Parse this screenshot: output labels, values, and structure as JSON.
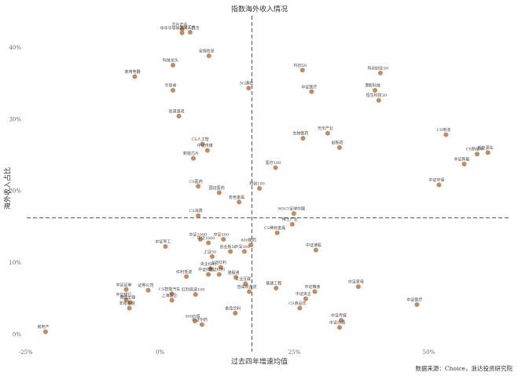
{
  "chart_data": {
    "type": "scatter",
    "title": "指数海外收入情况",
    "x_label": "过去四年增速均值",
    "y_label": "海外收入占比",
    "source": "数据来源：Choice，浙达投资研究院",
    "color": "#c98a5b",
    "xlim": [
      -27,
      65
    ],
    "ylim": [
      -1.5,
      44.5
    ],
    "xticks": [
      {
        "value": -25,
        "label": "-25%"
      },
      {
        "value": 0,
        "label": "0%"
      },
      {
        "value": 25,
        "label": "25%"
      },
      {
        "value": 50,
        "label": "50%"
      }
    ],
    "yticks": [
      {
        "value": 0,
        "label": "0%"
      },
      {
        "value": 10,
        "label": "10%"
      },
      {
        "value": 20,
        "label": "20%"
      },
      {
        "value": 30,
        "label": "30%"
      },
      {
        "value": 40,
        "label": "40%"
      }
    ],
    "x_reference": 17.1,
    "y_reference": 16.3,
    "labels": [
      "芯片产业",
      "中华半导体芯片人民币",
      "国证芯片",
      "全指信息",
      "科技龙头",
      "家用电器",
      "半导体",
      "动漫游戏",
      "5G通信",
      "科创50",
      "科创创业50",
      "港股科技",
      "恒生科技30",
      "中证医疗",
      "CS电池",
      "新能源车",
      "CS新能车",
      "中证新能",
      "中证环保",
      "光伏产业",
      "生物医药",
      "创新药",
      "CS人工智",
      "中证传媒",
      "新能芯片",
      "CS医药",
      "国证医药",
      "医疗100",
      "科创100",
      "有色金属",
      "MSCI全球中国",
      "CS消费",
      "稀土产业",
      "CS稀有金属",
      "中证2000",
      "中证500",
      "中证1000",
      "中证军工",
      "中证港股",
      "800医药",
      "沪深300",
      "创业板50",
      "上证50",
      "央企红利",
      "上证红利",
      "中证红利",
      "国证红利",
      "红利低波",
      "港股通",
      "工业互联",
      "中证家电",
      "中证证券",
      "证券公司",
      "中证银行",
      "CS智能汽车",
      "红利低波100",
      "中证粮食",
      "保险主题",
      "上海国企",
      "非银金融",
      "房地产",
      "自由现金流",
      "中证央企",
      "食品饮料",
      "300价值",
      "中证中药",
      "中证传媒",
      "中证白酒",
      "中证医疗",
      "CS食品饮",
      "基建工程"
    ],
    "x": [
      4.1,
      4.1,
      5.6,
      9.1,
      2.4,
      -4.7,
      2.4,
      3.5,
      16.5,
      26.5,
      41.0,
      40.0,
      40.7,
      28.2,
      53.2,
      61.0,
      59.0,
      56.6,
      51.9,
      31.2,
      26.6,
      33.4,
      7.9,
      8.8,
      6.2,
      7.1,
      11.0,
      21.5,
      18.5,
      14.7,
      24.9,
      7.1,
      24.6,
      21.8,
      7.5,
      11.8,
      9.0,
      1.0,
      29.0,
      16.9,
      15.7,
      13.1,
      9.7,
      9.4,
      11.3,
      9.0,
      11.0,
      4.9,
      14.1,
      15.9,
      36.9,
      -6.3,
      -2.2,
      -6.3,
      2.2,
      6.6,
      28.8,
      -5.6,
      2.2,
      -5.7,
      -21.3,
      16.6,
      27.1,
      14.0,
      6.5,
      7.8,
      33.7,
      33.4,
      47.8,
      26.0,
      21.6
    ],
    "values": [
      42.6,
      42.1,
      42.2,
      38.9,
      37.6,
      36.0,
      34.1,
      30.5,
      34.4,
      36.9,
      36.5,
      34.1,
      32.7,
      33.9,
      27.9,
      25.4,
      25.2,
      23.8,
      20.9,
      28.1,
      27.4,
      26.1,
      26.6,
      25.7,
      24.6,
      20.7,
      19.8,
      23.3,
      20.4,
      18.5,
      16.9,
      16.6,
      15.4,
      14.2,
      13.3,
      13.3,
      12.8,
      12.3,
      11.8,
      12.5,
      11.6,
      11.6,
      10.9,
      9.2,
      9.4,
      8.4,
      8.4,
      8.1,
      8.0,
      7.1,
      6.7,
      6.3,
      6.2,
      4.9,
      5.7,
      5.6,
      6.0,
      4.5,
      4.8,
      3.7,
      0.4,
      6.0,
      5.0,
      3.0,
      1.9,
      1.4,
      2.0,
      1.0,
      4.2,
      3.7,
      6.5
    ]
  }
}
